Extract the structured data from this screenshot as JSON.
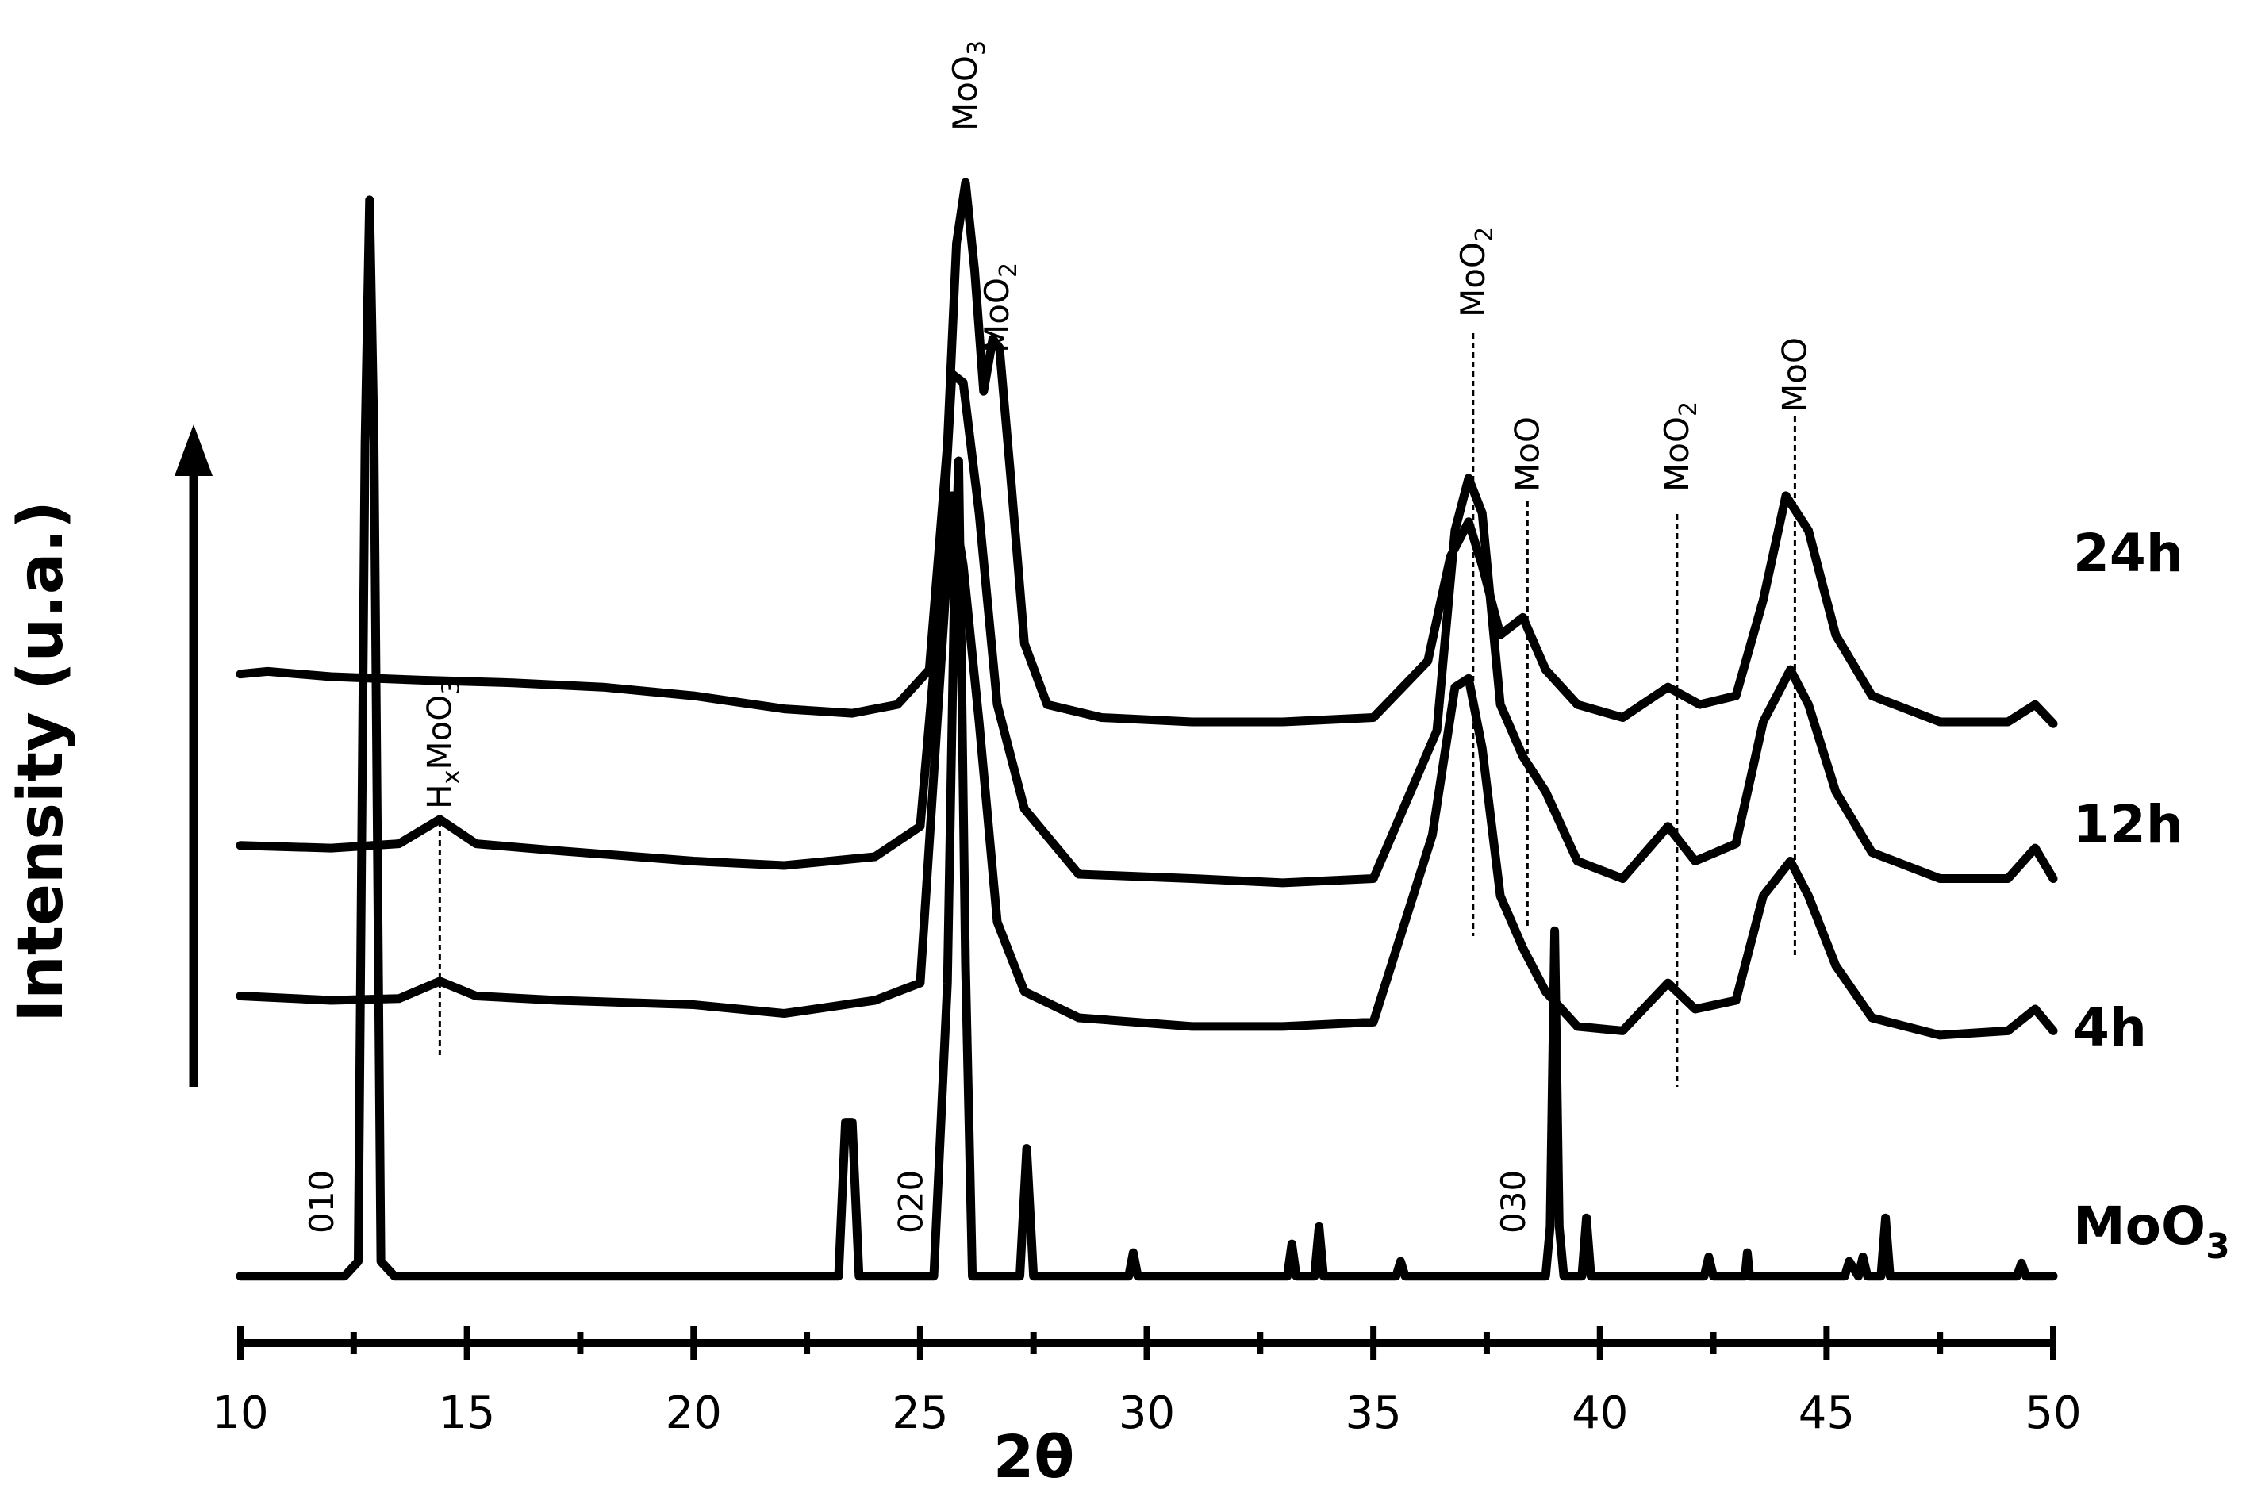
{
  "chart_data": {
    "type": "line",
    "title": "",
    "xlabel": "2θ",
    "ylabel": "Intensity (u.a.)",
    "xlim": [
      10,
      50
    ],
    "x_ticks": [
      10,
      15,
      20,
      25,
      30,
      35,
      40,
      45,
      50
    ],
    "grid": false,
    "legend": "labels at right end of each trace",
    "series": [
      {
        "name": "24h",
        "label_main": "24h",
        "label_sub": "",
        "baseline": 0.42,
        "points": [
          [
            10,
            0.435
          ],
          [
            10.6,
            0.438
          ],
          [
            12,
            0.432
          ],
          [
            14,
            0.428
          ],
          [
            16,
            0.425
          ],
          [
            18,
            0.42
          ],
          [
            20,
            0.41
          ],
          [
            22,
            0.395
          ],
          [
            23.5,
            0.39
          ],
          [
            24.5,
            0.4
          ],
          [
            25.2,
            0.44
          ],
          [
            25.6,
            0.7
          ],
          [
            25.8,
            0.93
          ],
          [
            26.0,
            1.0
          ],
          [
            26.2,
            0.9
          ],
          [
            26.4,
            0.76
          ],
          [
            26.6,
            0.82
          ],
          [
            26.75,
            0.81
          ],
          [
            27.0,
            0.66
          ],
          [
            27.3,
            0.47
          ],
          [
            27.8,
            0.4
          ],
          [
            29,
            0.385
          ],
          [
            31,
            0.38
          ],
          [
            33,
            0.38
          ],
          [
            35,
            0.385
          ],
          [
            36.2,
            0.45
          ],
          [
            36.7,
            0.57
          ],
          [
            37.1,
            0.61
          ],
          [
            37.4,
            0.56
          ],
          [
            37.8,
            0.48
          ],
          [
            38.3,
            0.5
          ],
          [
            38.8,
            0.44
          ],
          [
            39.5,
            0.4
          ],
          [
            40.5,
            0.385
          ],
          [
            41.5,
            0.42
          ],
          [
            42.2,
            0.4
          ],
          [
            43.0,
            0.41
          ],
          [
            43.6,
            0.52
          ],
          [
            44.1,
            0.64
          ],
          [
            44.6,
            0.6
          ],
          [
            45.2,
            0.48
          ],
          [
            46.0,
            0.41
          ],
          [
            47.5,
            0.38
          ],
          [
            49.0,
            0.38
          ],
          [
            49.6,
            0.4
          ],
          [
            50,
            0.378
          ]
        ]
      },
      {
        "name": "12h",
        "label_main": "12h",
        "label_sub": "",
        "baseline": 0.22,
        "points": [
          [
            10,
            0.238
          ],
          [
            12,
            0.235
          ],
          [
            13.5,
            0.24
          ],
          [
            14.4,
            0.268
          ],
          [
            15.2,
            0.24
          ],
          [
            17,
            0.232
          ],
          [
            20,
            0.22
          ],
          [
            22,
            0.215
          ],
          [
            24,
            0.225
          ],
          [
            25.0,
            0.26
          ],
          [
            25.4,
            0.5
          ],
          [
            25.7,
            0.78
          ],
          [
            25.95,
            0.77
          ],
          [
            26.3,
            0.62
          ],
          [
            26.7,
            0.4
          ],
          [
            27.3,
            0.28
          ],
          [
            28.5,
            0.205
          ],
          [
            31,
            0.2
          ],
          [
            33,
            0.195
          ],
          [
            35,
            0.2
          ],
          [
            36.4,
            0.37
          ],
          [
            36.8,
            0.6
          ],
          [
            37.1,
            0.66
          ],
          [
            37.4,
            0.62
          ],
          [
            37.8,
            0.4
          ],
          [
            38.3,
            0.34
          ],
          [
            38.8,
            0.3
          ],
          [
            39.5,
            0.22
          ],
          [
            40.5,
            0.2
          ],
          [
            41.5,
            0.26
          ],
          [
            42.1,
            0.22
          ],
          [
            43.0,
            0.24
          ],
          [
            43.6,
            0.38
          ],
          [
            44.2,
            0.44
          ],
          [
            44.6,
            0.4
          ],
          [
            45.2,
            0.3
          ],
          [
            46.0,
            0.23
          ],
          [
            47.5,
            0.2
          ],
          [
            49.0,
            0.2
          ],
          [
            49.6,
            0.235
          ],
          [
            50,
            0.2
          ]
        ]
      },
      {
        "name": "4h",
        "label_main": "4h",
        "label_sub": "",
        "baseline": 0.05,
        "points": [
          [
            10,
            0.065
          ],
          [
            12,
            0.06
          ],
          [
            13.5,
            0.062
          ],
          [
            14.4,
            0.082
          ],
          [
            15.2,
            0.065
          ],
          [
            17,
            0.06
          ],
          [
            20,
            0.055
          ],
          [
            22,
            0.045
          ],
          [
            24,
            0.06
          ],
          [
            25.0,
            0.08
          ],
          [
            25.4,
            0.4
          ],
          [
            25.7,
            0.64
          ],
          [
            25.95,
            0.56
          ],
          [
            26.3,
            0.38
          ],
          [
            26.7,
            0.15
          ],
          [
            27.3,
            0.07
          ],
          [
            28.5,
            0.04
          ],
          [
            31,
            0.03
          ],
          [
            33,
            0.03
          ],
          [
            35,
            0.035
          ],
          [
            36.3,
            0.25
          ],
          [
            36.8,
            0.42
          ],
          [
            37.1,
            0.43
          ],
          [
            37.4,
            0.35
          ],
          [
            37.8,
            0.18
          ],
          [
            38.3,
            0.12
          ],
          [
            38.8,
            0.07
          ],
          [
            39.5,
            0.03
          ],
          [
            40.5,
            0.025
          ],
          [
            41.5,
            0.08
          ],
          [
            42.1,
            0.05
          ],
          [
            43.0,
            0.06
          ],
          [
            43.6,
            0.18
          ],
          [
            44.2,
            0.22
          ],
          [
            44.6,
            0.18
          ],
          [
            45.2,
            0.1
          ],
          [
            46.0,
            0.04
          ],
          [
            47.5,
            0.02
          ],
          [
            49.0,
            0.025
          ],
          [
            49.6,
            0.05
          ],
          [
            50,
            0.025
          ]
        ]
      },
      {
        "name": "MoO3",
        "label_main": "MoO",
        "label_sub": "3",
        "baseline": -0.26,
        "points": [
          [
            10,
            -0.257
          ],
          [
            12.3,
            -0.257
          ],
          [
            12.6,
            -0.24
          ],
          [
            12.75,
            0.7
          ],
          [
            12.85,
            0.98
          ],
          [
            12.95,
            0.7
          ],
          [
            13.1,
            -0.24
          ],
          [
            13.4,
            -0.257
          ],
          [
            23.2,
            -0.257
          ],
          [
            23.35,
            -0.08
          ],
          [
            23.5,
            -0.08
          ],
          [
            23.65,
            -0.257
          ],
          [
            25.3,
            -0.257
          ],
          [
            25.6,
            0.08
          ],
          [
            25.75,
            0.52
          ],
          [
            25.85,
            0.68
          ],
          [
            26.0,
            0.1
          ],
          [
            26.15,
            -0.257
          ],
          [
            27.2,
            -0.257
          ],
          [
            27.35,
            -0.11
          ],
          [
            27.5,
            -0.257
          ],
          [
            29.6,
            -0.257
          ],
          [
            29.7,
            -0.23
          ],
          [
            29.8,
            -0.257
          ],
          [
            33.1,
            -0.257
          ],
          [
            33.2,
            -0.22
          ],
          [
            33.3,
            -0.257
          ],
          [
            33.7,
            -0.257
          ],
          [
            33.8,
            -0.2
          ],
          [
            33.9,
            -0.257
          ],
          [
            35.5,
            -0.257
          ],
          [
            35.6,
            -0.24
          ],
          [
            35.7,
            -0.257
          ],
          [
            38.8,
            -0.257
          ],
          [
            38.9,
            -0.2
          ],
          [
            39.0,
            0.14
          ],
          [
            39.1,
            -0.2
          ],
          [
            39.2,
            -0.257
          ],
          [
            39.6,
            -0.257
          ],
          [
            39.7,
            -0.19
          ],
          [
            39.8,
            -0.257
          ],
          [
            42.3,
            -0.257
          ],
          [
            42.4,
            -0.235
          ],
          [
            42.5,
            -0.257
          ],
          [
            43.2,
            -0.257
          ],
          [
            43.25,
            -0.23
          ],
          [
            43.3,
            -0.257
          ],
          [
            45.4,
            -0.257
          ],
          [
            45.5,
            -0.24
          ],
          [
            45.7,
            -0.257
          ],
          [
            45.8,
            -0.235
          ],
          [
            45.9,
            -0.257
          ],
          [
            46.2,
            -0.257
          ],
          [
            46.3,
            -0.19
          ],
          [
            46.4,
            -0.257
          ],
          [
            49.2,
            -0.257
          ],
          [
            49.3,
            -0.242
          ],
          [
            49.4,
            -0.257
          ],
          [
            50,
            -0.257
          ]
        ]
      }
    ],
    "annotations": [
      {
        "main": "MoO",
        "sub": "3",
        "x": 26.0,
        "line": false
      },
      {
        "main": "MoO",
        "sub": "2",
        "x": 26.7,
        "line": false
      },
      {
        "main": "MoO",
        "sub": "2",
        "x": 37.2,
        "line": true
      },
      {
        "main": "MoO",
        "sub": "",
        "x": 38.4,
        "line": true
      },
      {
        "main": "MoO",
        "sub": "2",
        "x": 41.7,
        "line": true
      },
      {
        "main": "MoO",
        "sub": "",
        "x": 44.3,
        "line": true
      },
      {
        "main": "H",
        "sub": "x",
        "tail": "MoO",
        "tail_sub": "3",
        "x": 14.4,
        "line": true
      }
    ],
    "reflections": [
      {
        "label": "010",
        "x": 11.8
      },
      {
        "label": "020",
        "x": 24.8
      },
      {
        "label": "030",
        "x": 38.1
      }
    ]
  }
}
